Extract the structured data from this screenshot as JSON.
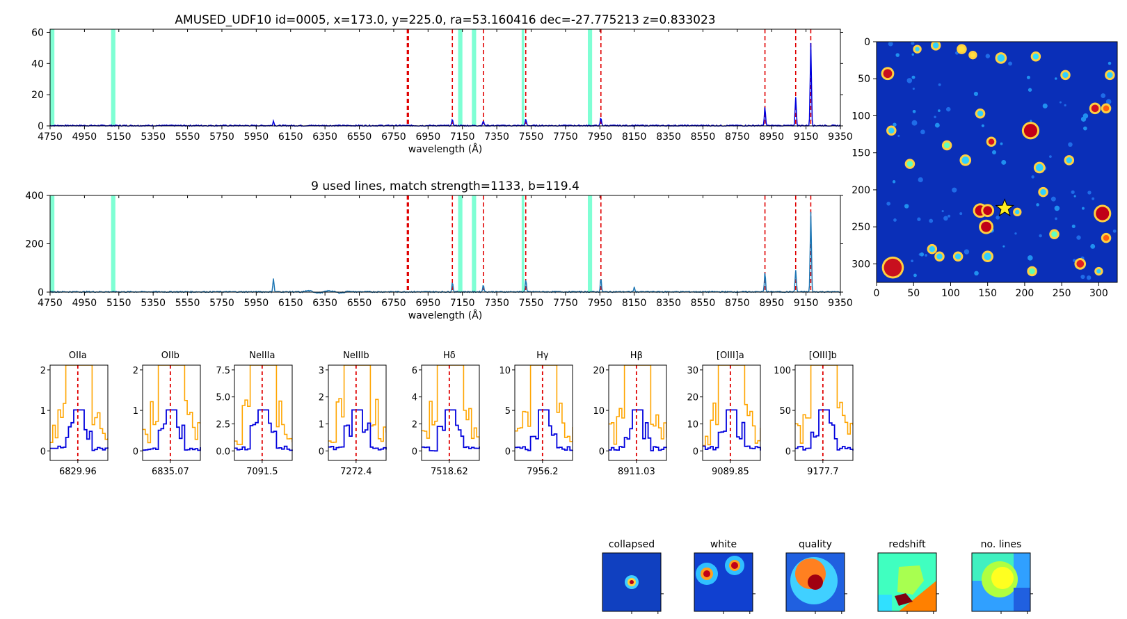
{
  "chart_data": [
    {
      "type": "line",
      "title": "AMUSED_UDF10 id=0005, x=173.0, y=225.0, ra=53.160416 dec=-27.775213 z=0.833023",
      "xlabel": "wavelength (Å)",
      "xlim": [
        4750,
        9350
      ],
      "ylim": [
        0,
        62
      ],
      "yticks": [
        0,
        20,
        40,
        60
      ],
      "xticks": [
        4750,
        4950,
        5150,
        5350,
        5550,
        5750,
        5950,
        6150,
        6350,
        6550,
        6750,
        6950,
        7150,
        7350,
        7550,
        7750,
        7950,
        8150,
        8350,
        8550,
        8750,
        8950,
        9150,
        9350
      ],
      "series_color": "#0000dd",
      "sky_bands": [
        [
          4750,
          4775
        ],
        [
          5105,
          5130
        ],
        [
          7125,
          7150
        ],
        [
          7205,
          7230
        ],
        [
          7495,
          7510
        ],
        [
          7880,
          7905
        ]
      ],
      "red_lines": [
        6829.96,
        6835.07,
        7091.5,
        7272.4,
        7518.62,
        7956.2,
        8911.03,
        9089.85,
        9177.7
      ],
      "peaks": [
        {
          "x": 6050,
          "y": 3
        },
        {
          "x": 7092,
          "y": 4
        },
        {
          "x": 7272,
          "y": 3
        },
        {
          "x": 7519,
          "y": 4
        },
        {
          "x": 7956,
          "y": 5
        },
        {
          "x": 8911,
          "y": 12
        },
        {
          "x": 9090,
          "y": 18
        },
        {
          "x": 9178,
          "y": 53
        }
      ]
    },
    {
      "type": "line",
      "title": "9 used lines, match strength=1133, b=119.4",
      "xlabel": "wavelength (Å)",
      "xlim": [
        4750,
        9350
      ],
      "ylim": [
        0,
        400
      ],
      "yticks": [
        0,
        200,
        400
      ],
      "xticks": [
        4750,
        4950,
        5150,
        5350,
        5550,
        5750,
        5950,
        6150,
        6350,
        6550,
        6750,
        6950,
        7150,
        7350,
        7550,
        7750,
        7950,
        8150,
        8350,
        8550,
        8750,
        8950,
        9150,
        9350
      ],
      "series_color": "#1f77b4",
      "sky_bands": [
        [
          4750,
          4775
        ],
        [
          5105,
          5130
        ],
        [
          7125,
          7150
        ],
        [
          7205,
          7230
        ],
        [
          7495,
          7510
        ],
        [
          7880,
          7905
        ]
      ],
      "red_lines": [
        6829.96,
        6835.07,
        7091.5,
        7272.4,
        7518.62,
        7956.2,
        8911.03,
        9089.85,
        9177.7
      ],
      "peaks": [
        {
          "x": 6050,
          "y": 55
        },
        {
          "x": 7092,
          "y": 40
        },
        {
          "x": 7272,
          "y": 30
        },
        {
          "x": 7519,
          "y": 50
        },
        {
          "x": 7956,
          "y": 55
        },
        {
          "x": 8150,
          "y": 18
        },
        {
          "x": 8911,
          "y": 80
        },
        {
          "x": 9090,
          "y": 90
        },
        {
          "x": 9178,
          "y": 330
        }
      ]
    },
    {
      "type": "heatmap",
      "title": "",
      "xlim": [
        0,
        325
      ],
      "ylim": [
        325,
        0
      ],
      "xticks": [
        0,
        50,
        100,
        150,
        200,
        250,
        300
      ],
      "yticks": [
        0,
        50,
        100,
        150,
        200,
        250,
        300
      ],
      "background": "#0a2fb8",
      "marker": {
        "x": 173,
        "y": 225,
        "symbol": "star",
        "color": "#ffee22"
      },
      "blobs": [
        {
          "x": 15,
          "y": 43,
          "r": 6,
          "c": "#c8101e"
        },
        {
          "x": 115,
          "y": 10,
          "r": 4,
          "c": "#ffe040"
        },
        {
          "x": 130,
          "y": 18,
          "r": 3,
          "c": "#ffe040"
        },
        {
          "x": 155,
          "y": 135,
          "r": 4,
          "c": "#d01020"
        },
        {
          "x": 208,
          "y": 120,
          "r": 9,
          "c": "#c00018"
        },
        {
          "x": 295,
          "y": 90,
          "r": 5,
          "c": "#d01020"
        },
        {
          "x": 310,
          "y": 90,
          "r": 4,
          "c": "#ff6010"
        },
        {
          "x": 140,
          "y": 228,
          "r": 7,
          "c": "#c00018"
        },
        {
          "x": 150,
          "y": 228,
          "r": 6,
          "c": "#c00018"
        },
        {
          "x": 148,
          "y": 250,
          "r": 7,
          "c": "#c00018"
        },
        {
          "x": 22,
          "y": 305,
          "r": 12,
          "c": "#c8101e"
        },
        {
          "x": 305,
          "y": 232,
          "r": 9,
          "c": "#c00018"
        },
        {
          "x": 310,
          "y": 265,
          "r": 4,
          "c": "#ff6010"
        },
        {
          "x": 275,
          "y": 300,
          "r": 5,
          "c": "#e02020"
        },
        {
          "x": 210,
          "y": 310,
          "r": 4,
          "c": "#60ffb0"
        },
        {
          "x": 215,
          "y": 20,
          "r": 4,
          "c": "#30e0ff"
        },
        {
          "x": 168,
          "y": 22,
          "r": 5,
          "c": "#30d0ff"
        },
        {
          "x": 80,
          "y": 5,
          "r": 4,
          "c": "#30d0ff"
        },
        {
          "x": 95,
          "y": 140,
          "r": 4,
          "c": "#60ffc0"
        },
        {
          "x": 45,
          "y": 165,
          "r": 4,
          "c": "#60ffc0"
        },
        {
          "x": 120,
          "y": 160,
          "r": 5,
          "c": "#30d0ff"
        },
        {
          "x": 220,
          "y": 170,
          "r": 5,
          "c": "#30d0ff"
        },
        {
          "x": 260,
          "y": 160,
          "r": 4,
          "c": "#30d0ff"
        },
        {
          "x": 140,
          "y": 97,
          "r": 4,
          "c": "#30d0ff"
        },
        {
          "x": 225,
          "y": 203,
          "r": 4,
          "c": "#30d0ff"
        },
        {
          "x": 240,
          "y": 260,
          "r": 4,
          "c": "#60ffc0"
        },
        {
          "x": 150,
          "y": 290,
          "r": 5,
          "c": "#30d0ff"
        },
        {
          "x": 75,
          "y": 280,
          "r": 4,
          "c": "#30d0ff"
        },
        {
          "x": 85,
          "y": 290,
          "r": 4,
          "c": "#30d0ff"
        },
        {
          "x": 315,
          "y": 45,
          "r": 4,
          "c": "#30d0ff"
        },
        {
          "x": 55,
          "y": 10,
          "r": 3,
          "c": "#30d0ff"
        },
        {
          "x": 255,
          "y": 45,
          "r": 4,
          "c": "#30d0ff"
        },
        {
          "x": 300,
          "y": 310,
          "r": 3,
          "c": "#30d0ff"
        },
        {
          "x": 20,
          "y": 120,
          "r": 4,
          "c": "#30d0ff"
        },
        {
          "x": 190,
          "y": 230,
          "r": 3,
          "c": "#30d0ff"
        },
        {
          "x": 110,
          "y": 290,
          "r": 4,
          "c": "#30d0ff"
        }
      ]
    }
  ],
  "line_panels": [
    {
      "title": "OIIa",
      "center": "6829.96",
      "yticks": [
        "0",
        "1",
        "2"
      ]
    },
    {
      "title": "OIIb",
      "center": "6835.07",
      "yticks": [
        "0",
        "1",
        "2"
      ]
    },
    {
      "title": "NeIIIa",
      "center": "7091.5",
      "yticks": [
        "0.0",
        "2.5",
        "5.0",
        "7.5"
      ]
    },
    {
      "title": "NeIIIb",
      "center": "7272.4",
      "yticks": [
        "0",
        "1",
        "2",
        "3"
      ]
    },
    {
      "title": "Hδ",
      "center": "7518.62",
      "yticks": [
        "0",
        "2",
        "4",
        "6"
      ]
    },
    {
      "title": "Hγ",
      "center": "7956.2",
      "yticks": [
        "0",
        "5",
        "10"
      ]
    },
    {
      "title": "Hβ",
      "center": "8911.03",
      "yticks": [
        "0",
        "10",
        "20"
      ]
    },
    {
      "title": "[OIII]a",
      "center": "9089.85",
      "yticks": [
        "0",
        "10",
        "20",
        "30"
      ]
    },
    {
      "title": "[OIII]b",
      "center": "9177.7",
      "yticks": [
        "0",
        "50",
        "100"
      ]
    }
  ],
  "thumbnails": [
    {
      "title": "collapsed"
    },
    {
      "title": "white"
    },
    {
      "title": "quality"
    },
    {
      "title": "redshift"
    },
    {
      "title": "no. lines"
    }
  ]
}
